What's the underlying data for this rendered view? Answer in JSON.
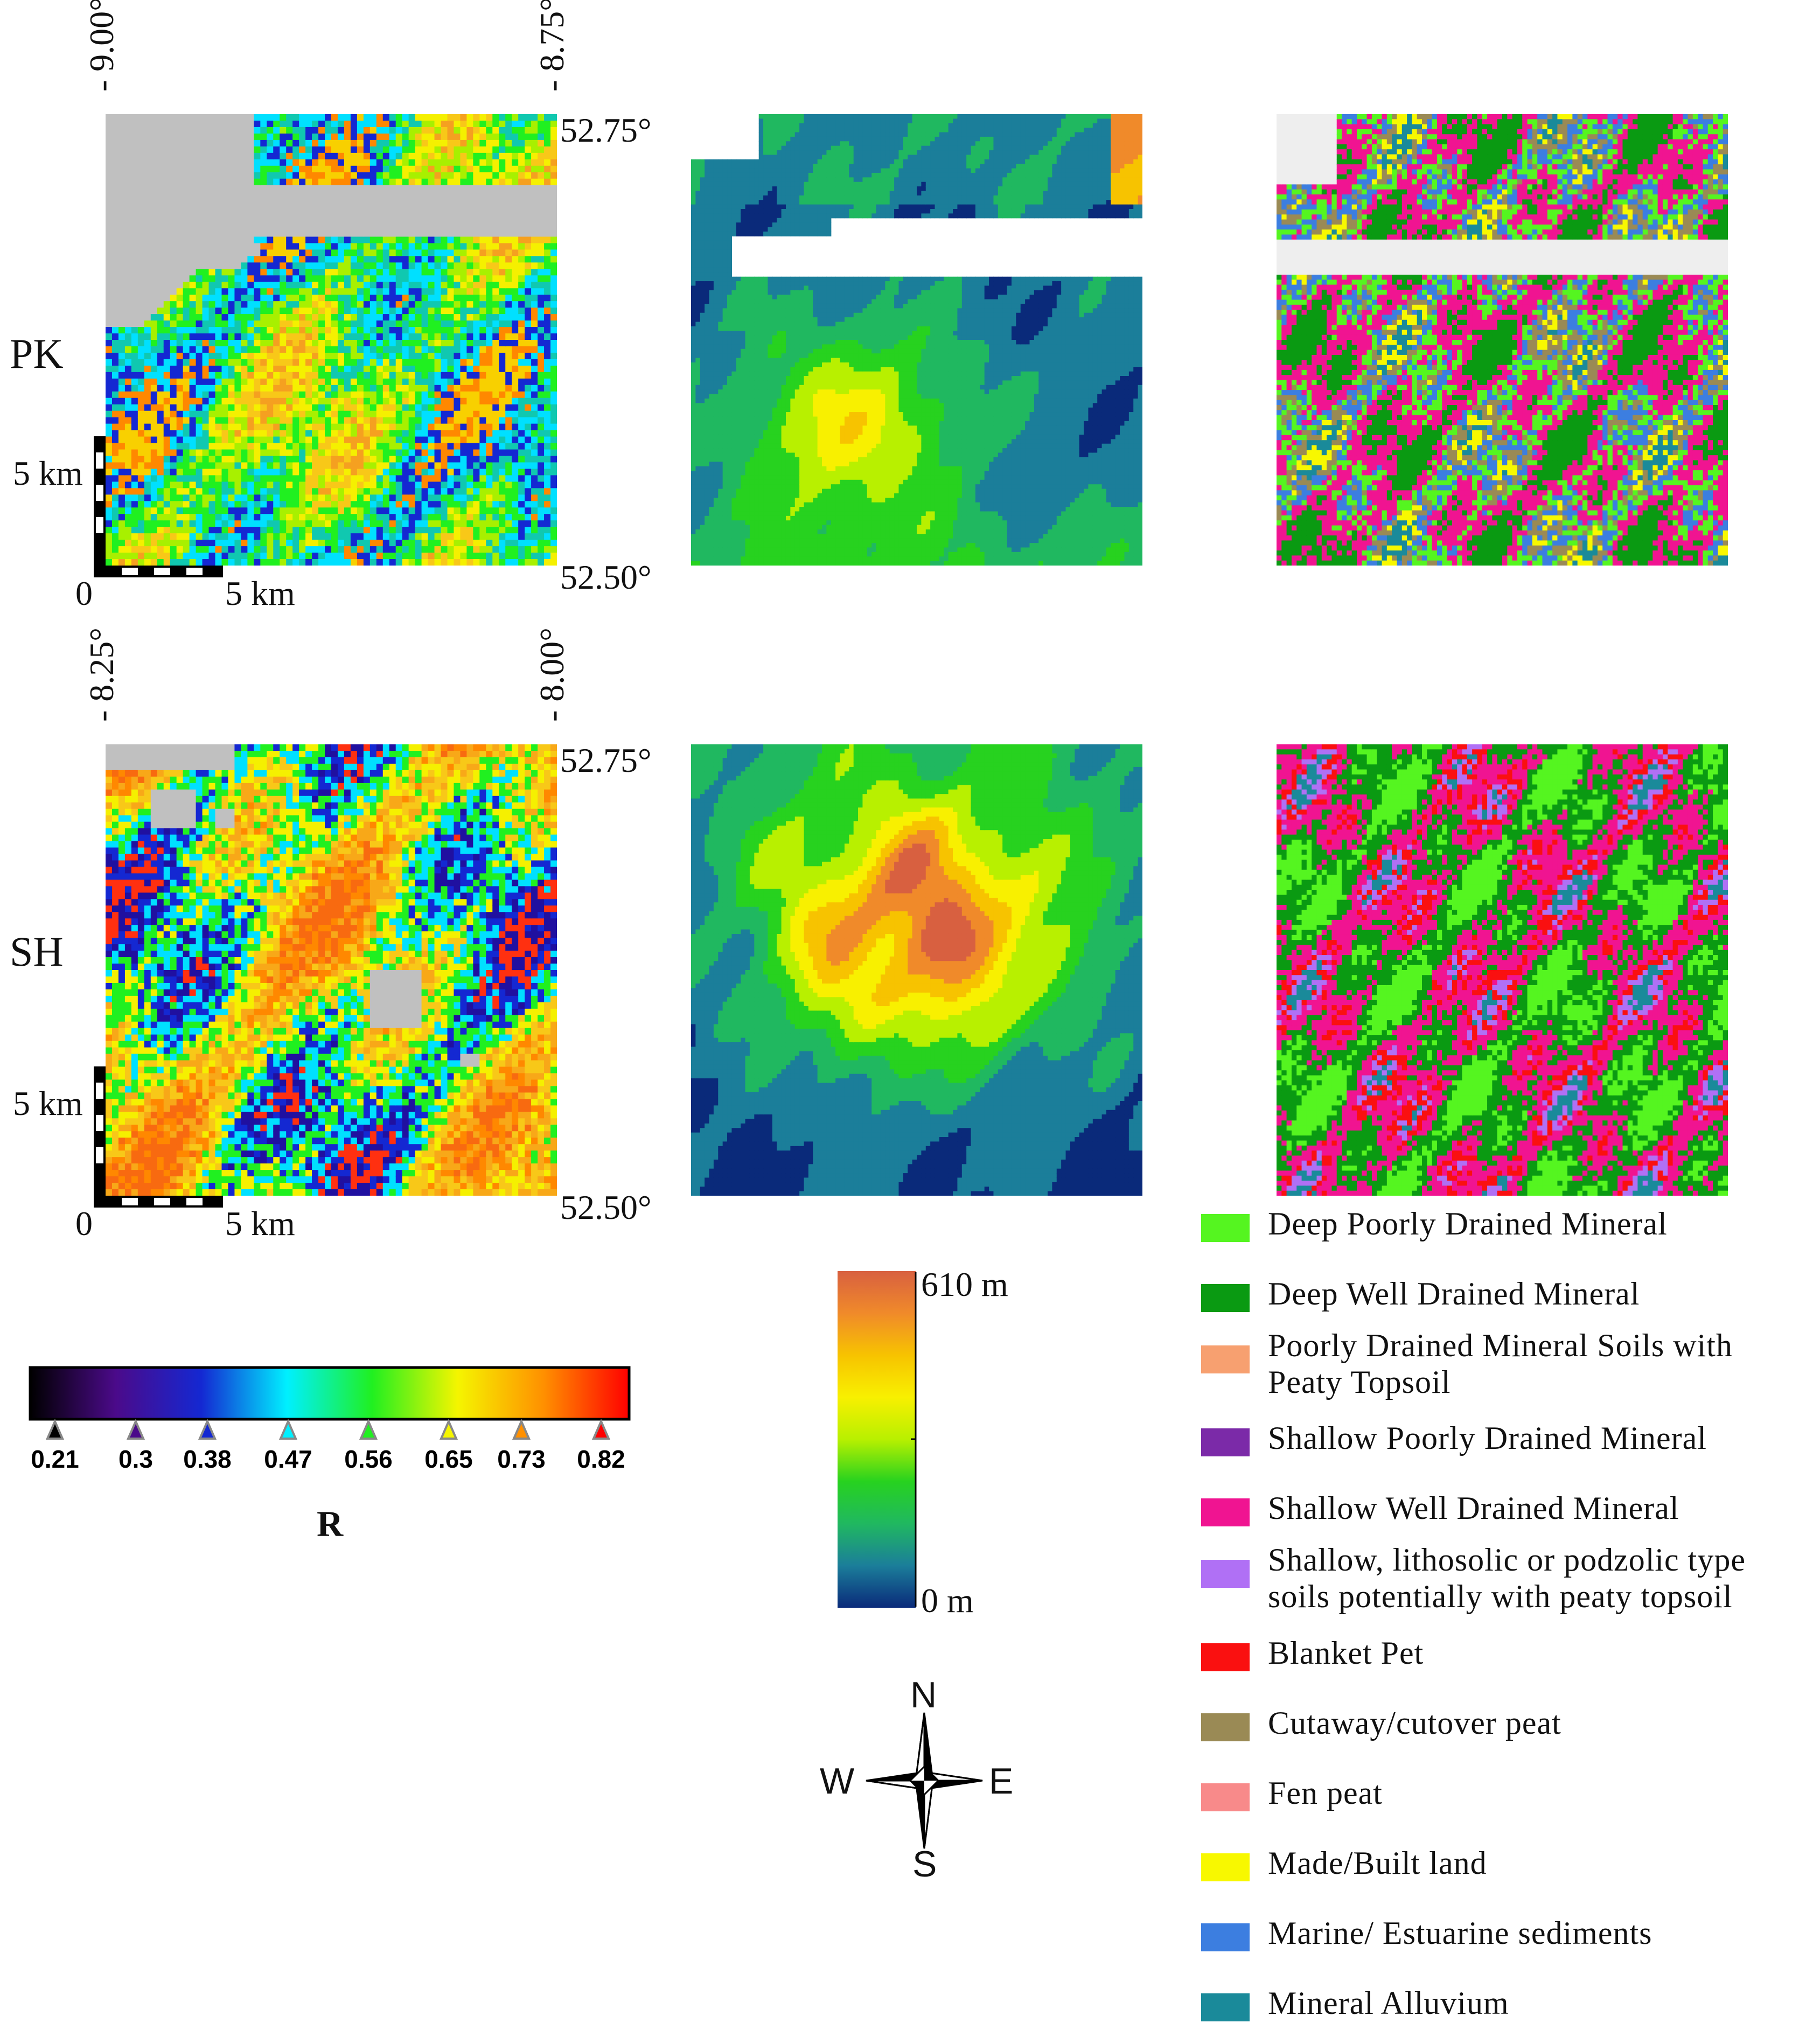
{
  "rows": [
    {
      "id": "pk",
      "label": "PK",
      "lon_left": "9.00°",
      "lon_right": "8.75°",
      "lat_top": "52.75°",
      "lat_bottom": "52.50°",
      "prefix": "-"
    },
    {
      "id": "sh",
      "label": "SH",
      "lon_left": "8.25°",
      "lon_right": "8.00°",
      "lat_top": "52.75°",
      "lat_bottom": "52.50°",
      "prefix": "-"
    }
  ],
  "scalebar": {
    "zero": "0",
    "horizontal": "5 km",
    "vertical": "5 km"
  },
  "r_colorbar": {
    "title": "R",
    "ticks": [
      "0.21",
      "0.3",
      "0.38",
      "0.47",
      "0.56",
      "0.65",
      "0.73",
      "0.82"
    ],
    "colors": [
      "#000000",
      "#4b0a8a",
      "#1428d2",
      "#00f0ff",
      "#20f020",
      "#f5f500",
      "#ff9000",
      "#ff0000"
    ]
  },
  "elevation_colorbar": {
    "top": "610 m",
    "bottom": "0 m",
    "colors": [
      "#0a2a7a",
      "#1b7e9a",
      "#20b860",
      "#27d21f",
      "#b8f000",
      "#f8f000",
      "#f7c300",
      "#f08a2a",
      "#d86040"
    ]
  },
  "compass": {
    "n": "N",
    "s": "S",
    "e": "E",
    "w": "W"
  },
  "soil_legend": [
    {
      "color": "#55f520",
      "text": "Deep Poorly Drained Mineral"
    },
    {
      "color": "#0a9a12",
      "text": "Deep Well Drained Mineral"
    },
    {
      "color": "#f7a070",
      "text": "Poorly Drained Mineral Soils with",
      "text2": "Peaty Topsoil"
    },
    {
      "color": "#7b2aa8",
      "text": "Shallow Poorly Drained Mineral"
    },
    {
      "color": "#f01491",
      "text": "Shallow Well Drained Mineral"
    },
    {
      "color": "#b070f5",
      "text": "Shallow, lithosolic or podzolic type",
      "text2": "soils potentially with peaty topsoil"
    },
    {
      "color": "#fa1010",
      "text": "Blanket Pet"
    },
    {
      "color": "#9a8a55",
      "text": "Cutaway/cutover peat"
    },
    {
      "color": "#f88a8a",
      "text": "Fen peat"
    },
    {
      "color": "#f8f800",
      "text": "Made/Built land"
    },
    {
      "color": "#3c7ee0",
      "text": "Marine/ Estuarine sediments"
    },
    {
      "color": "#1a8a9a",
      "text": "Mineral Alluvium"
    }
  ],
  "raster_colors": {
    "gray": "#c0c0c0",
    "r_pk": [
      "#f5a020",
      "#f8c818",
      "#f5f000",
      "#a8f000",
      "#20f020",
      "#10c8b0",
      "#00e0ff",
      "#1428d2",
      "#ff8800",
      "#f8d000"
    ],
    "r_sh": [
      "#f86a10",
      "#ff8800",
      "#f8a818",
      "#f8c818",
      "#f5f000",
      "#20f020",
      "#00e0ff",
      "#1428d2",
      "#2010a0",
      "#ff3010"
    ],
    "soil_pk": [
      "#0a9a12",
      "#0a9a12",
      "#0a9a12",
      "#f01491",
      "#f01491",
      "#55f520",
      "#3c7ee0",
      "#9a8a55",
      "#f8f800",
      "#1a8a9a"
    ],
    "soil_sh": [
      "#55f520",
      "#55f520",
      "#55f520",
      "#0a9a12",
      "#0a9a12",
      "#f01491",
      "#f01491",
      "#fa1010",
      "#b070f5",
      "#1a8a9a"
    ]
  }
}
